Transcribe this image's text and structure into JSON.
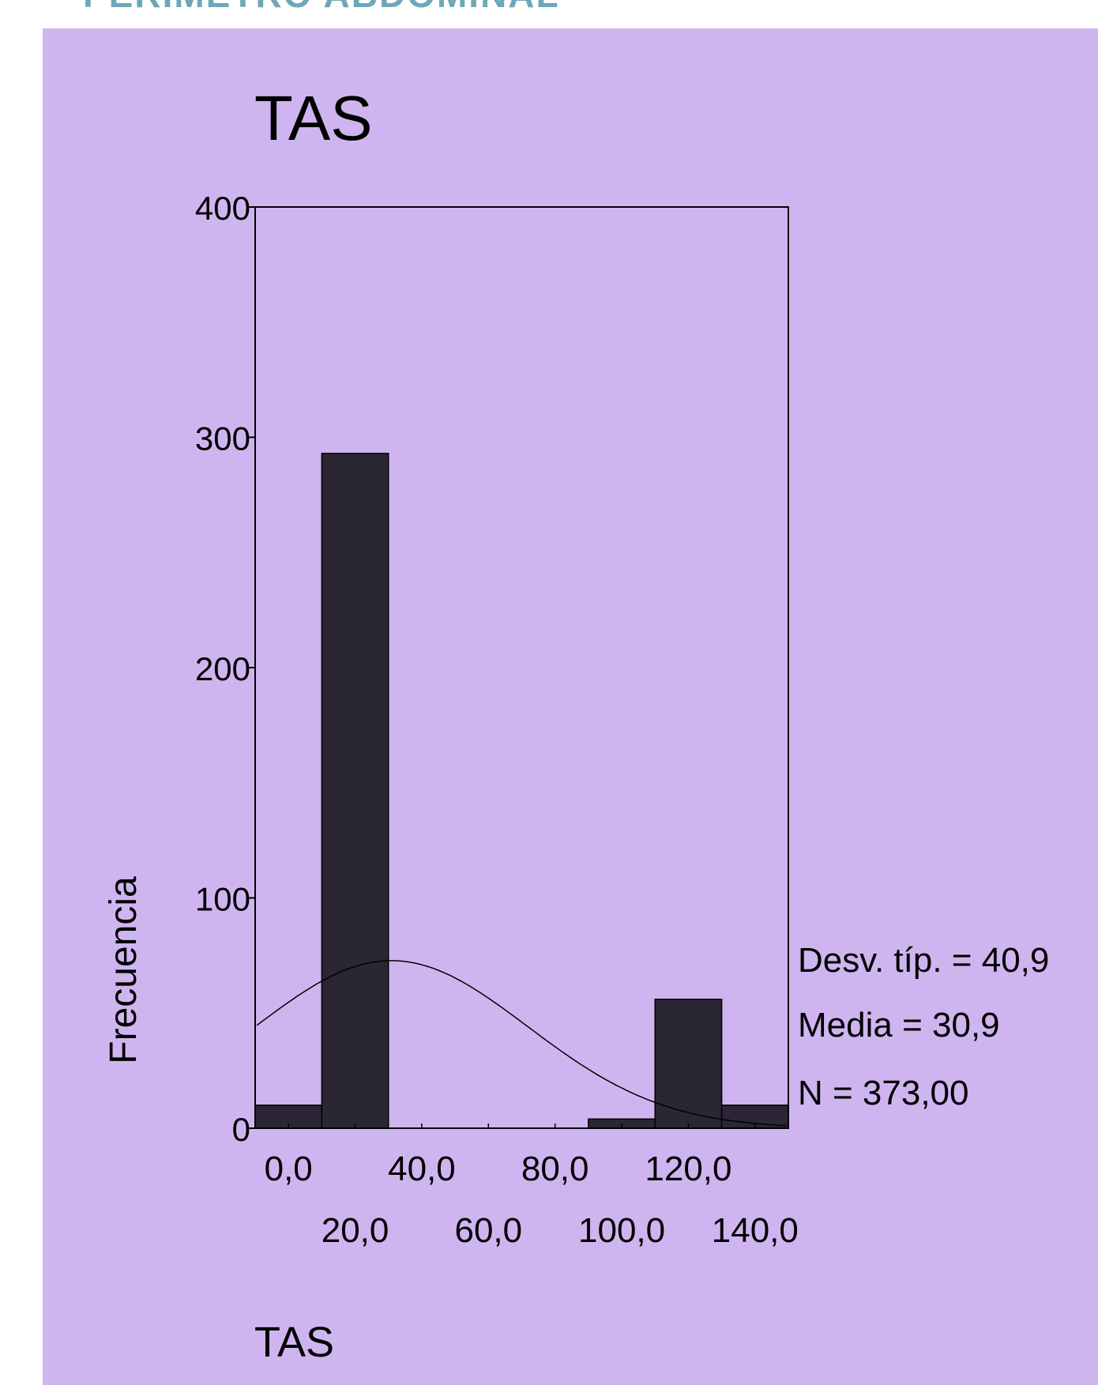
{
  "page": {
    "cut_header": "PERIMETRO ABDOMINAL",
    "panel_color": "#cfb5f0",
    "header_color": "#6fa7b8"
  },
  "chart_data": {
    "type": "bar",
    "title": "TAS",
    "xlabel": "TAS",
    "ylabel": "Frecuencia",
    "ylim": [
      0,
      400
    ],
    "xlim": [
      -10,
      150
    ],
    "yticks": [
      0,
      100,
      200,
      300,
      400
    ],
    "ytick_labels": [
      "0",
      "100",
      "200",
      "300",
      "400"
    ],
    "xticks_row1": [
      0,
      40,
      80,
      120
    ],
    "xtick_labels_row1": [
      "0,0",
      "40,0",
      "80,0",
      "120,0"
    ],
    "xticks_row2": [
      20,
      60,
      100,
      140
    ],
    "xtick_labels_row2": [
      "20,0",
      "60,0",
      "100,0",
      "140,0"
    ],
    "bin_width": 20,
    "bars": [
      {
        "center": 0,
        "value": 10
      },
      {
        "center": 20,
        "value": 293
      },
      {
        "center": 40,
        "value": 0
      },
      {
        "center": 60,
        "value": 0
      },
      {
        "center": 100,
        "value": 4
      },
      {
        "center": 120,
        "value": 56
      },
      {
        "center": 140,
        "value": 10
      }
    ],
    "normal_curve": {
      "mean": 30.9,
      "sd": 40.9,
      "n": 373
    },
    "stats": {
      "sd_label": "Desv. típ. = 40,9",
      "mean_label": "Media = 30,9",
      "n_label": "N = 373,00"
    },
    "grid": false,
    "bar_color": "#2a2633",
    "background": "#cfb5f0"
  }
}
